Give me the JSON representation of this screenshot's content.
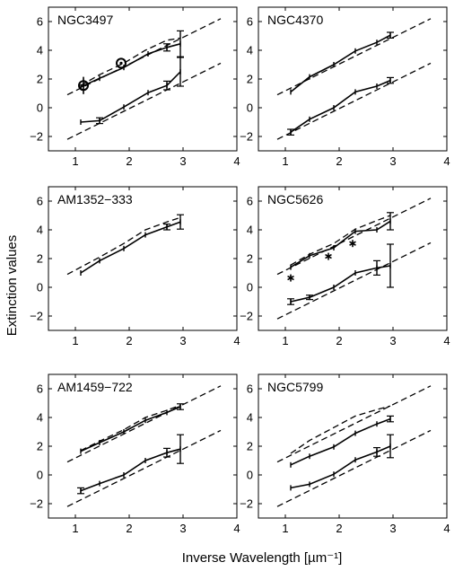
{
  "figure": {
    "xlabel": "Inverse Wavelength  [µm⁻¹]",
    "ylabel": "Extinction values"
  },
  "chart_data": [
    {
      "type": "line",
      "title": "NGC3497",
      "xlim": [
        0.5,
        4
      ],
      "ylim": [
        -3,
        7
      ],
      "xticks": [
        1,
        2,
        3,
        4
      ],
      "yticks": [
        -2,
        0,
        2,
        4,
        6
      ],
      "series": [
        {
          "style": "dashed",
          "x": [
            0.85,
            3.7
          ],
          "y": [
            0.9,
            6.2
          ]
        },
        {
          "style": "dashed",
          "x": [
            0.85,
            3.7
          ],
          "y": [
            -2.2,
            3.1
          ]
        },
        {
          "style": "dashed",
          "x": [
            1.1,
            1.45,
            1.9,
            2.3,
            2.7,
            2.95
          ],
          "y": [
            1.55,
            2.3,
            3.1,
            4.0,
            4.7,
            4.85
          ]
        },
        {
          "style": "solid",
          "x": [
            1.1,
            1.45,
            1.9,
            2.35,
            2.7,
            2.95
          ],
          "y": [
            1.45,
            2.05,
            2.8,
            3.75,
            4.2,
            4.45
          ],
          "error": [
            0,
            0,
            0,
            0,
            0.25,
            0.9
          ]
        },
        {
          "style": "solid",
          "x": [
            1.1,
            1.45,
            1.9,
            2.35,
            2.7,
            2.95
          ],
          "y": [
            -1.0,
            -0.9,
            0.05,
            1.05,
            1.55,
            2.5
          ],
          "error": [
            0,
            0.2,
            0,
            0,
            0.3,
            1.0
          ]
        }
      ],
      "markers": [
        {
          "shape": "circled-dot",
          "x": 1.15,
          "y": 1.55,
          "error": 0.6
        },
        {
          "shape": "circled-dot",
          "x": 1.85,
          "y": 3.1,
          "error": 0
        }
      ]
    },
    {
      "type": "line",
      "title": "NGC4370",
      "xlim": [
        0.5,
        4
      ],
      "ylim": [
        -3,
        7
      ],
      "xticks": [
        1,
        2,
        3,
        4
      ],
      "yticks": [
        -2,
        0,
        2,
        4,
        6
      ],
      "series": [
        {
          "style": "dashed",
          "x": [
            0.85,
            3.7
          ],
          "y": [
            0.9,
            6.2
          ]
        },
        {
          "style": "dashed",
          "x": [
            0.85,
            3.7
          ],
          "y": [
            -2.2,
            3.1
          ]
        },
        {
          "style": "solid",
          "x": [
            1.1,
            1.45,
            1.9,
            2.3,
            2.7,
            2.95
          ],
          "y": [
            1.1,
            2.15,
            3.0,
            3.95,
            4.55,
            5.05
          ],
          "error": [
            0,
            0,
            0,
            0,
            0,
            0.2
          ]
        },
        {
          "style": "solid",
          "x": [
            1.1,
            1.45,
            1.9,
            2.3,
            2.7,
            2.95
          ],
          "y": [
            -1.7,
            -0.8,
            0.0,
            1.1,
            1.5,
            1.9
          ],
          "error": [
            0.2,
            0,
            0,
            0,
            0,
            0.2
          ]
        }
      ],
      "markers": []
    },
    {
      "type": "line",
      "title": "AM1352−333",
      "xlim": [
        0.5,
        4
      ],
      "ylim": [
        -3,
        7
      ],
      "xticks": [
        1,
        2,
        3,
        4
      ],
      "yticks": [
        -2,
        0,
        2,
        4,
        6
      ],
      "series": [
        {
          "style": "dashed",
          "x": [
            0.85,
            1.45,
            1.9,
            2.3,
            2.7,
            2.95
          ],
          "y": [
            0.9,
            2.1,
            3.05,
            4.0,
            4.55,
            4.85
          ]
        },
        {
          "style": "solid",
          "x": [
            1.1,
            1.45,
            1.9,
            2.3,
            2.7,
            2.95
          ],
          "y": [
            1.0,
            1.85,
            2.7,
            3.65,
            4.2,
            4.55
          ],
          "error": [
            0,
            0,
            0,
            0,
            0.2,
            0.5
          ]
        }
      ],
      "markers": []
    },
    {
      "type": "line",
      "title": "NGC5626",
      "xlim": [
        0.5,
        4
      ],
      "ylim": [
        -3,
        7
      ],
      "xticks": [
        1,
        2,
        3,
        4
      ],
      "yticks": [
        -2,
        0,
        2,
        4,
        6
      ],
      "series": [
        {
          "style": "dashed",
          "x": [
            0.85,
            3.7
          ],
          "y": [
            0.9,
            6.2
          ]
        },
        {
          "style": "dashed",
          "x": [
            0.85,
            3.7
          ],
          "y": [
            -2.2,
            3.1
          ]
        },
        {
          "style": "dashed",
          "x": [
            1.1,
            1.45,
            1.9,
            2.3,
            2.7,
            2.95
          ],
          "y": [
            1.55,
            2.3,
            3.05,
            4.05,
            4.65,
            5.0
          ]
        },
        {
          "style": "solid",
          "x": [
            1.1,
            1.45,
            1.9,
            2.3,
            2.7,
            2.95
          ],
          "y": [
            1.4,
            2.2,
            2.75,
            3.9,
            4.0,
            4.6
          ],
          "error": [
            0,
            0,
            0,
            0,
            0,
            0.6
          ]
        },
        {
          "style": "solid",
          "x": [
            1.1,
            1.45,
            1.9,
            2.3,
            2.7,
            2.95
          ],
          "y": [
            -1.0,
            -0.7,
            0.0,
            1.0,
            1.35,
            1.5
          ],
          "error": [
            0.2,
            0.15,
            0,
            0,
            0.5,
            1.5
          ]
        }
      ],
      "markers": [
        {
          "shape": "asterisk",
          "x": 1.1,
          "y": 0.65
        },
        {
          "shape": "asterisk",
          "x": 1.8,
          "y": 2.15
        },
        {
          "shape": "asterisk",
          "x": 2.25,
          "y": 3.05
        }
      ]
    },
    {
      "type": "line",
      "title": "AM1459−722",
      "xlim": [
        0.5,
        4
      ],
      "ylim": [
        -3,
        7
      ],
      "xticks": [
        1,
        2,
        3,
        4
      ],
      "yticks": [
        -2,
        0,
        2,
        4,
        6
      ],
      "series": [
        {
          "style": "dashed",
          "x": [
            0.85,
            3.7
          ],
          "y": [
            0.9,
            6.2
          ]
        },
        {
          "style": "dashed",
          "x": [
            0.85,
            3.7
          ],
          "y": [
            -2.2,
            3.1
          ]
        },
        {
          "style": "dashed",
          "x": [
            1.1,
            1.45,
            1.9,
            2.3,
            2.7,
            2.95
          ],
          "y": [
            1.7,
            2.35,
            3.15,
            4.0,
            4.5,
            4.85
          ]
        },
        {
          "style": "solid",
          "x": [
            1.1,
            1.45,
            1.9,
            2.3,
            2.7,
            2.95
          ],
          "y": [
            1.65,
            2.25,
            3.0,
            3.8,
            4.35,
            4.75
          ],
          "error": [
            0,
            0,
            0,
            0,
            0,
            0.2
          ]
        },
        {
          "style": "solid",
          "x": [
            1.1,
            1.45,
            1.9,
            2.3,
            2.7,
            2.95
          ],
          "y": [
            -1.1,
            -0.6,
            0.0,
            1.0,
            1.55,
            1.8
          ],
          "error": [
            0.2,
            0,
            0,
            0,
            0.3,
            1.0
          ]
        }
      ],
      "markers": []
    },
    {
      "type": "line",
      "title": "NGC5799",
      "xlim": [
        0.5,
        4
      ],
      "ylim": [
        -3,
        7
      ],
      "xticks": [
        1,
        2,
        3,
        4
      ],
      "yticks": [
        -2,
        0,
        2,
        4,
        6
      ],
      "series": [
        {
          "style": "dashed",
          "x": [
            0.85,
            3.7
          ],
          "y": [
            0.9,
            6.2
          ]
        },
        {
          "style": "dashed",
          "x": [
            0.85,
            3.7
          ],
          "y": [
            -2.2,
            3.1
          ]
        },
        {
          "style": "dashed",
          "x": [
            1.1,
            1.45,
            1.9,
            2.3,
            2.7,
            2.95
          ],
          "y": [
            1.5,
            2.4,
            3.3,
            4.1,
            4.55,
            4.8
          ]
        },
        {
          "style": "solid",
          "x": [
            1.1,
            1.45,
            1.9,
            2.3,
            2.7,
            2.95
          ],
          "y": [
            0.7,
            1.3,
            1.95,
            2.9,
            3.55,
            3.9
          ],
          "error": [
            0,
            0,
            0,
            0,
            0,
            0.2
          ]
        },
        {
          "style": "solid",
          "x": [
            1.1,
            1.45,
            1.9,
            2.3,
            2.7,
            2.95
          ],
          "y": [
            -0.9,
            -0.65,
            0.05,
            1.05,
            1.6,
            2.0
          ],
          "error": [
            0,
            0,
            0,
            0,
            0.3,
            0.8
          ]
        }
      ],
      "markers": []
    }
  ]
}
